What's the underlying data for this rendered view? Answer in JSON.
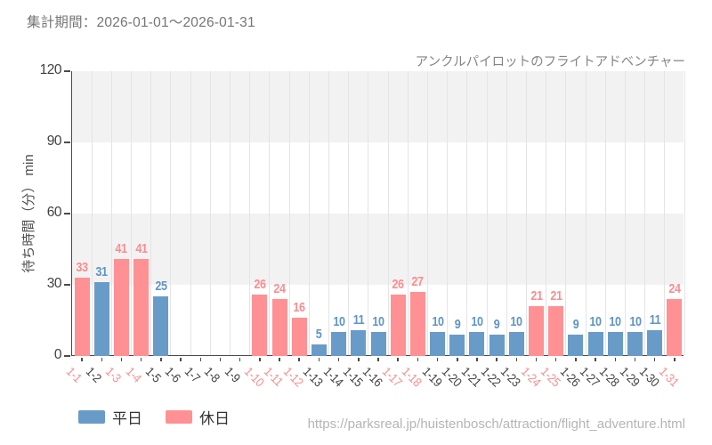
{
  "page": {
    "period_label": "集計期間：2026-01-01〜2026-01-31",
    "source_url": "https://parksreal.jp/huistenbosch/attraction/flight_adventure.html"
  },
  "colors": {
    "weekday_bar": "#699bc8",
    "holiday_bar": "#ff9194",
    "weekday_text": "#6095c2",
    "holiday_text": "#fb8d90",
    "axis": "#4a4a4a",
    "tick_label": "#404040",
    "band": "#f2f2f2",
    "gridline": "#e4e4e4"
  },
  "chart_data": {
    "type": "bar",
    "title": "アンクルパイロットのフライトアドベンチャー",
    "ylabel": "待ち時間（分） min",
    "xlabel": "",
    "ylim": [
      0,
      120
    ],
    "yticks": [
      0,
      30,
      60,
      90,
      120
    ],
    "grid": true,
    "legend_position": "bottom-left",
    "legend": [
      {
        "name": "平日",
        "type": "weekday"
      },
      {
        "name": "休日",
        "type": "holiday"
      }
    ],
    "categories": [
      "1-1",
      "1-2",
      "1-3",
      "1-4",
      "1-5",
      "1-6",
      "1-7",
      "1-8",
      "1-9",
      "1-10",
      "1-11",
      "1-12",
      "1-13",
      "1-14",
      "1-15",
      "1-16",
      "1-17",
      "1-18",
      "1-19",
      "1-20",
      "1-21",
      "1-22",
      "1-23",
      "1-24",
      "1-25",
      "1-26",
      "1-27",
      "1-28",
      "1-29",
      "1-30",
      "1-31"
    ],
    "values": [
      33,
      31,
      41,
      41,
      25,
      null,
      null,
      null,
      null,
      26,
      24,
      16,
      5,
      10,
      11,
      10,
      26,
      27,
      10,
      9,
      10,
      9,
      10,
      21,
      21,
      9,
      10,
      10,
      10,
      11,
      24
    ],
    "day_types": [
      "holiday",
      "weekday",
      "holiday",
      "holiday",
      "weekday",
      "weekday",
      "weekday",
      "weekday",
      "weekday",
      "holiday",
      "holiday",
      "holiday",
      "weekday",
      "weekday",
      "weekday",
      "weekday",
      "holiday",
      "holiday",
      "weekday",
      "weekday",
      "weekday",
      "weekday",
      "weekday",
      "holiday",
      "holiday",
      "weekday",
      "weekday",
      "weekday",
      "weekday",
      "weekday",
      "holiday"
    ]
  }
}
